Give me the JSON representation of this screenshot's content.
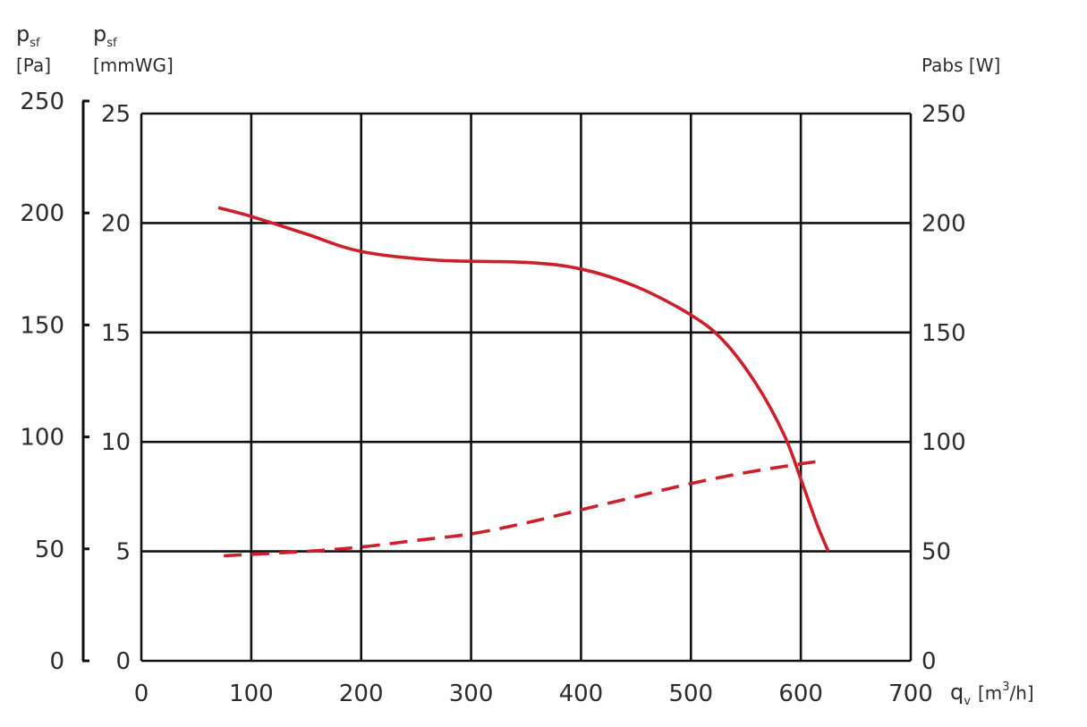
{
  "chart_data": {
    "type": "line",
    "x_axis": {
      "label_main": "q",
      "label_sub": "v",
      "label_unit_pre": "[m",
      "label_unit_sup": "3",
      "label_unit_post": "/h]",
      "range": [
        0,
        700
      ],
      "ticks": [
        "0",
        "100",
        "200",
        "300",
        "400",
        "500",
        "600",
        "700"
      ]
    },
    "y_axis_pa": {
      "label_main": "p",
      "label_sub": "sf",
      "label_unit": "[Pa]",
      "range": [
        0,
        250
      ],
      "ticks": [
        "0",
        "50",
        "100",
        "150",
        "200",
        "250"
      ]
    },
    "y_axis_mmwg": {
      "label_main": "p",
      "label_sub": "sf",
      "label_unit": "[mmWG]",
      "range": [
        0,
        25
      ],
      "ticks": [
        "0",
        "5",
        "10",
        "15",
        "20",
        "25"
      ]
    },
    "y_axis_right": {
      "label": "Pabs [W]",
      "range": [
        0,
        250
      ],
      "ticks": [
        "0",
        "50",
        "100",
        "150",
        "200",
        "250"
      ]
    },
    "grid": true,
    "series": [
      {
        "style": "solid",
        "color": "#cc1f2b",
        "axis": "mmWG",
        "points": [
          [
            70,
            20.7
          ],
          [
            100,
            20.3
          ],
          [
            150,
            19.5
          ],
          [
            200,
            18.7
          ],
          [
            270,
            18.3
          ],
          [
            350,
            18.2
          ],
          [
            400,
            17.9
          ],
          [
            450,
            17.1
          ],
          [
            500,
            15.8
          ],
          [
            530,
            14.6
          ],
          [
            560,
            12.6
          ],
          [
            585,
            10.3
          ],
          [
            600,
            8.3
          ],
          [
            615,
            6.2
          ],
          [
            625,
            5.0
          ]
        ]
      },
      {
        "style": "dashed",
        "color": "#cc1f2b",
        "axis": "Pabs",
        "points": [
          [
            75,
            48
          ],
          [
            150,
            50
          ],
          [
            200,
            52
          ],
          [
            250,
            55
          ],
          [
            300,
            58
          ],
          [
            350,
            63
          ],
          [
            400,
            69
          ],
          [
            450,
            75
          ],
          [
            500,
            81
          ],
          [
            550,
            86
          ],
          [
            600,
            90
          ],
          [
            615,
            91
          ]
        ]
      }
    ]
  }
}
